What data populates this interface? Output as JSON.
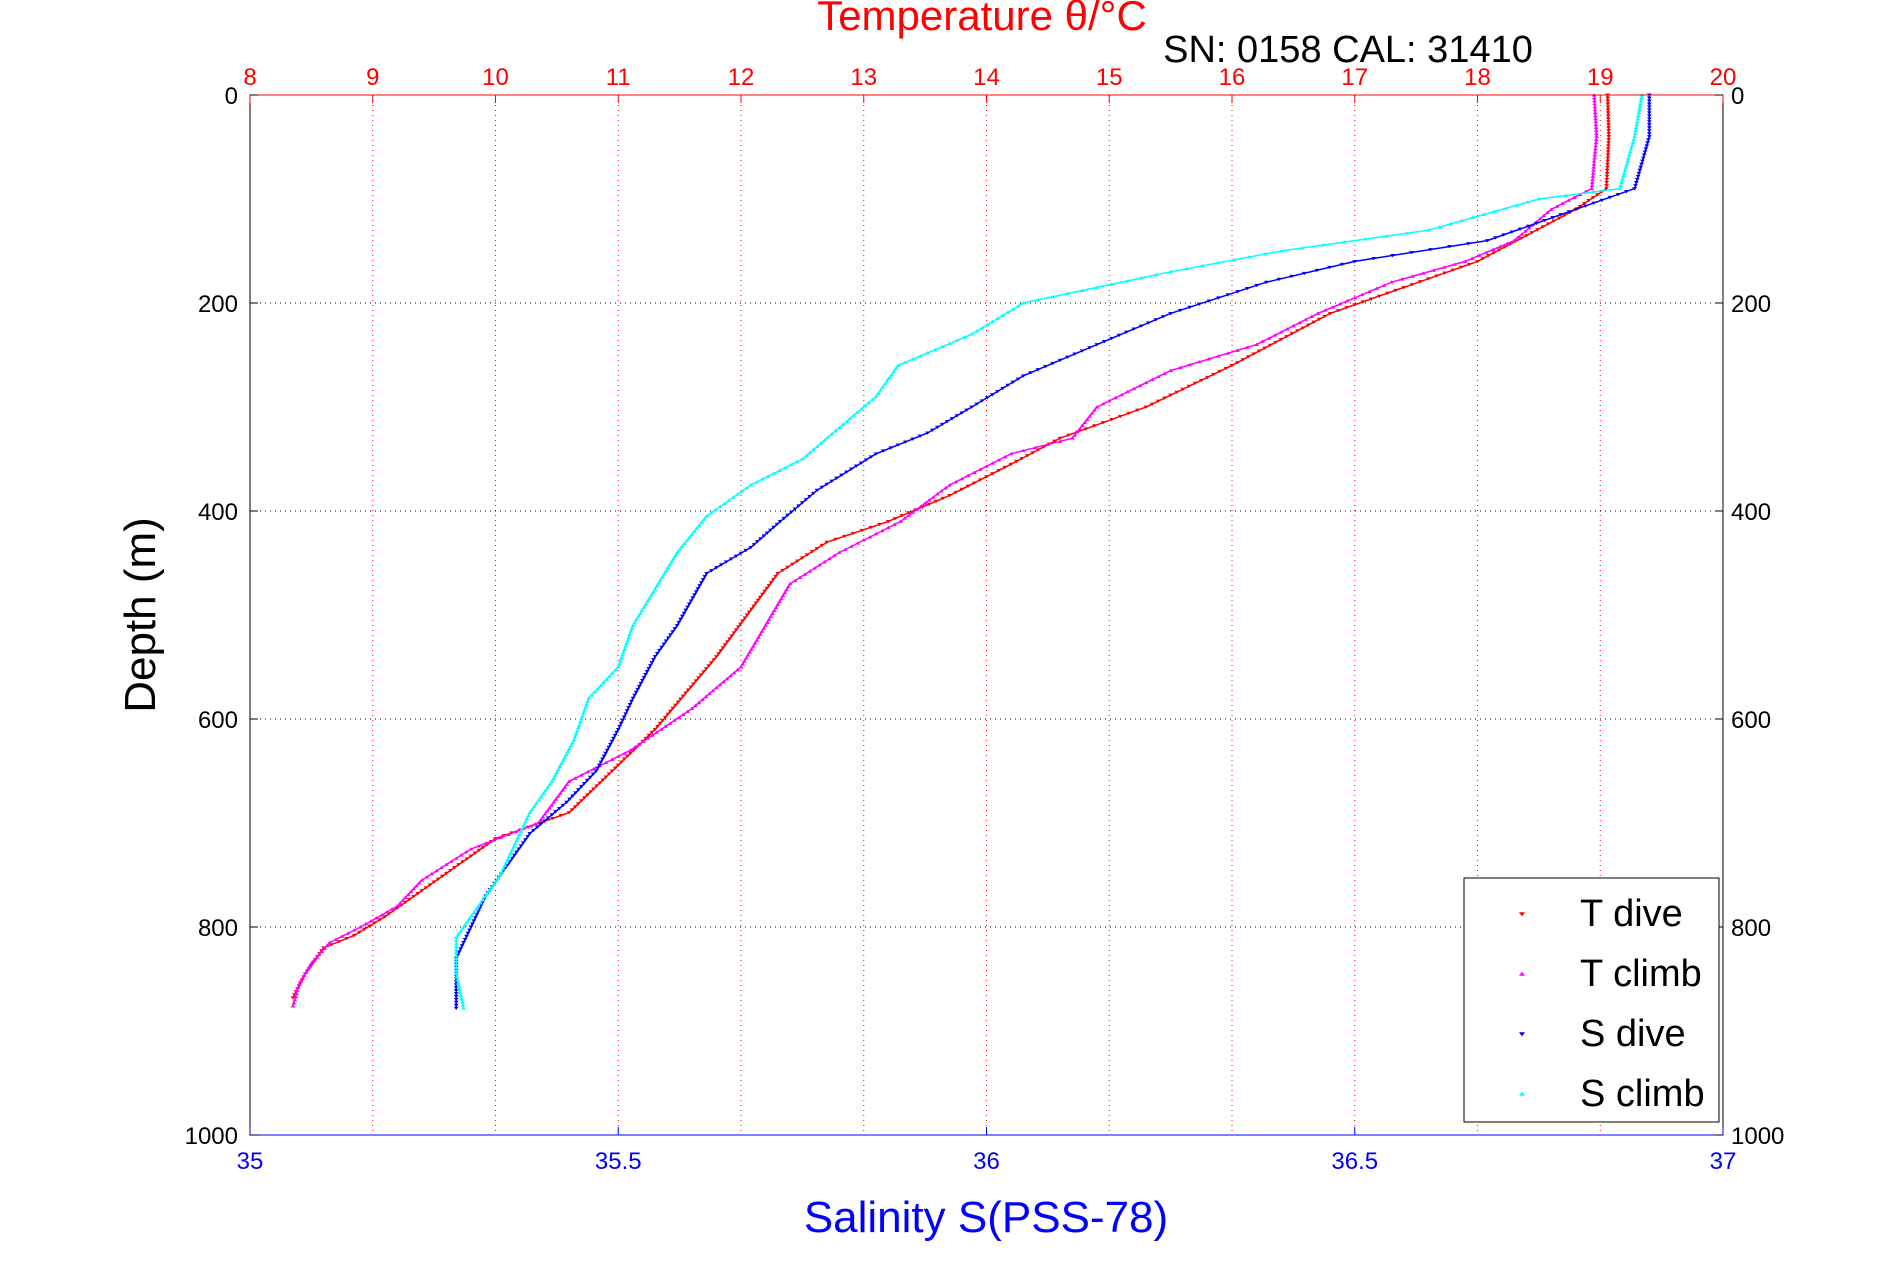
{
  "chart_data": {
    "type": "scatter",
    "title": "Temperature θ/°C",
    "subtitle": "SN: 0158  CAL: 31410",
    "ylabel": "Depth (m)",
    "xlabel_bottom": "Salinity S(PSS-78)",
    "xlabel_top": "Temperature θ/°C",
    "ylim": [
      0,
      1000
    ],
    "y_reversed": true,
    "xlim_bottom": [
      35,
      37
    ],
    "xlim_top": [
      8,
      20
    ],
    "y_ticks": [
      "0",
      "200",
      "400",
      "600",
      "800",
      "1000"
    ],
    "x_ticks_bottom": [
      "35",
      "35.5",
      "36",
      "36.5",
      "37"
    ],
    "x_ticks_top": [
      "8",
      "9",
      "10",
      "11",
      "12",
      "13",
      "14",
      "15",
      "16",
      "17",
      "18",
      "19",
      "20"
    ],
    "grid": true,
    "legend_position": "bottom-right",
    "colors": {
      "temperature_axis": "#ff0000",
      "salinity_axis": "#0000ff",
      "grid": "#000000",
      "temp_grid": "#ff0000"
    },
    "series": [
      {
        "name": "T dive",
        "axis": "top",
        "color": "#ff0000",
        "marker": "triangle-down",
        "points": [
          [
            19.06,
            0
          ],
          [
            19.07,
            40
          ],
          [
            19.05,
            90
          ],
          [
            18.8,
            110
          ],
          [
            18.4,
            135
          ],
          [
            18.0,
            160
          ],
          [
            17.4,
            185
          ],
          [
            16.8,
            210
          ],
          [
            16.4,
            235
          ],
          [
            16.0,
            260
          ],
          [
            15.3,
            300
          ],
          [
            14.6,
            330
          ],
          [
            14.2,
            355
          ],
          [
            13.7,
            385
          ],
          [
            13.2,
            410
          ],
          [
            12.7,
            430
          ],
          [
            12.3,
            460
          ],
          [
            12.05,
            500
          ],
          [
            11.8,
            540
          ],
          [
            11.55,
            575
          ],
          [
            11.3,
            610
          ],
          [
            10.95,
            650
          ],
          [
            10.6,
            690
          ],
          [
            10.0,
            715
          ],
          [
            9.7,
            740
          ],
          [
            9.4,
            765
          ],
          [
            9.1,
            790
          ],
          [
            8.85,
            808
          ],
          [
            8.6,
            820
          ],
          [
            8.45,
            845
          ],
          [
            8.35,
            868
          ]
        ]
      },
      {
        "name": "T climb",
        "axis": "top",
        "color": "#ff00ff",
        "marker": "triangle-up",
        "points": [
          [
            18.95,
            0
          ],
          [
            18.97,
            40
          ],
          [
            18.93,
            90
          ],
          [
            18.6,
            110
          ],
          [
            18.3,
            140
          ],
          [
            17.9,
            160
          ],
          [
            17.3,
            180
          ],
          [
            16.7,
            210
          ],
          [
            16.2,
            240
          ],
          [
            15.5,
            265
          ],
          [
            14.9,
            300
          ],
          [
            14.7,
            330
          ],
          [
            14.2,
            345
          ],
          [
            13.7,
            375
          ],
          [
            13.3,
            410
          ],
          [
            12.8,
            440
          ],
          [
            12.4,
            470
          ],
          [
            12.2,
            510
          ],
          [
            12.0,
            550
          ],
          [
            11.6,
            590
          ],
          [
            11.1,
            630
          ],
          [
            10.6,
            660
          ],
          [
            10.35,
            700
          ],
          [
            9.8,
            725
          ],
          [
            9.4,
            755
          ],
          [
            9.2,
            780
          ],
          [
            8.9,
            800
          ],
          [
            8.65,
            815
          ],
          [
            8.5,
            835
          ],
          [
            8.4,
            855
          ],
          [
            8.35,
            876
          ]
        ]
      },
      {
        "name": "S dive",
        "axis": "bottom",
        "color": "#0000ff",
        "marker": "triangle-down",
        "points": [
          [
            36.9,
            0
          ],
          [
            36.9,
            40
          ],
          [
            36.88,
            90
          ],
          [
            36.78,
            115
          ],
          [
            36.68,
            140
          ],
          [
            36.5,
            160
          ],
          [
            36.38,
            180
          ],
          [
            36.25,
            210
          ],
          [
            36.15,
            240
          ],
          [
            36.05,
            270
          ],
          [
            35.98,
            300
          ],
          [
            35.92,
            325
          ],
          [
            35.85,
            345
          ],
          [
            35.77,
            380
          ],
          [
            35.72,
            410
          ],
          [
            35.68,
            435
          ],
          [
            35.62,
            460
          ],
          [
            35.58,
            510
          ],
          [
            35.55,
            540
          ],
          [
            35.52,
            580
          ],
          [
            35.5,
            610
          ],
          [
            35.47,
            650
          ],
          [
            35.43,
            680
          ],
          [
            35.38,
            710
          ],
          [
            35.35,
            740
          ],
          [
            35.32,
            770
          ],
          [
            35.3,
            800
          ],
          [
            35.28,
            830
          ],
          [
            35.28,
            878
          ]
        ]
      },
      {
        "name": "S climb",
        "axis": "bottom",
        "color": "#00ffff",
        "marker": "triangle-up",
        "points": [
          [
            36.89,
            0
          ],
          [
            36.88,
            40
          ],
          [
            36.86,
            90
          ],
          [
            36.75,
            100
          ],
          [
            36.6,
            130
          ],
          [
            36.4,
            150
          ],
          [
            36.25,
            170
          ],
          [
            36.05,
            200
          ],
          [
            35.98,
            230
          ],
          [
            35.88,
            260
          ],
          [
            35.85,
            290
          ],
          [
            35.8,
            320
          ],
          [
            35.75,
            350
          ],
          [
            35.68,
            375
          ],
          [
            35.62,
            405
          ],
          [
            35.58,
            440
          ],
          [
            35.55,
            475
          ],
          [
            35.52,
            510
          ],
          [
            35.5,
            550
          ],
          [
            35.46,
            580
          ],
          [
            35.44,
            620
          ],
          [
            35.41,
            660
          ],
          [
            35.38,
            690
          ],
          [
            35.36,
            720
          ],
          [
            35.34,
            750
          ],
          [
            35.31,
            780
          ],
          [
            35.28,
            810
          ],
          [
            35.28,
            845
          ],
          [
            35.29,
            878
          ]
        ]
      }
    ]
  }
}
